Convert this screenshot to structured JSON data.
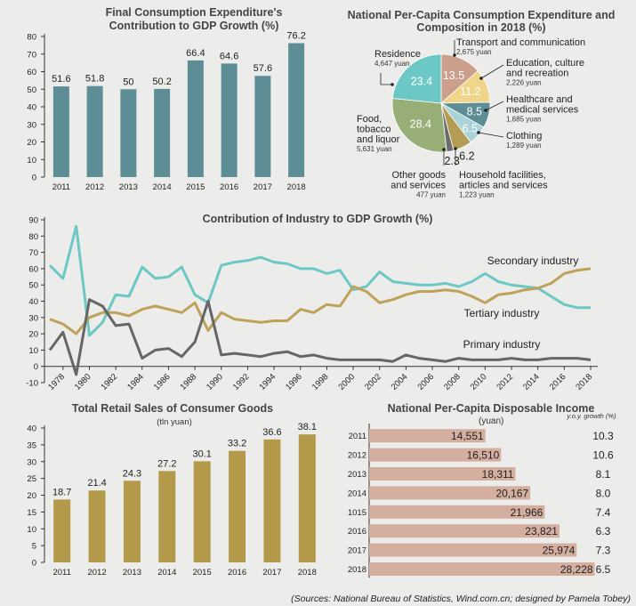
{
  "sources": {
    "prefix": "(Sources: ",
    "name1": "National Bureau of Statistics",
    "sep": ", ",
    "name2": "Wind.com.cn",
    "suffix": "; designed by Pamela Tobey)"
  },
  "colors": {
    "teal": "#5d8e96",
    "gold": "#b29a4a",
    "secondary": "#6cc8c4",
    "tertiary": "#bfa259",
    "primary": "#666666",
    "bar": "#d4ae9f"
  },
  "chart_data": [
    {
      "id": "fce",
      "type": "bar",
      "title": [
        "Final Consumption Expenditure's",
        "Contribution to GDP Growth (%)"
      ],
      "categories": [
        "2011",
        "2012",
        "2013",
        "2014",
        "2015",
        "2016",
        "2017",
        "2018"
      ],
      "values": [
        51.6,
        51.8,
        50,
        50.2,
        66.4,
        64.6,
        57.6,
        76.2
      ],
      "value_labels": [
        "51.6",
        "51.8",
        "50",
        "50.2",
        "66.4",
        "64.6",
        "57.6",
        "76.2"
      ],
      "ylim": [
        0,
        80
      ],
      "yticks": [
        0,
        10,
        20,
        30,
        40,
        50,
        60,
        70,
        80
      ]
    },
    {
      "id": "pie",
      "type": "pie",
      "title": [
        "National Per-Capita Consumption Expenditure and",
        "Composition in 2018 (%)"
      ],
      "slices": [
        {
          "pct": 13.5,
          "label": "13.5",
          "name": [
            "Transport and communication"
          ],
          "value": "2,675 yuan",
          "color": "#cc9e8c"
        },
        {
          "pct": 11.2,
          "label": "11.2",
          "name": [
            "Education, culture",
            "and recreation"
          ],
          "value": "2,226 yuan",
          "color": "#f1d58a"
        },
        {
          "pct": 8.5,
          "label": "8.5",
          "name": [
            "Healthcare and",
            "medical services"
          ],
          "value": "1,685 yuan",
          "color": "#5f8d95"
        },
        {
          "pct": 6.5,
          "label": "6.5",
          "name": [
            "Clothing"
          ],
          "value": "1,289 yuan",
          "color": "#a9d3d6"
        },
        {
          "pct": 6.2,
          "label": "6.2",
          "name": [
            "Household facilities,",
            "articles and services"
          ],
          "value": "1,223 yuan",
          "color": "#b59c55"
        },
        {
          "pct": 2.3,
          "label": "2.3",
          "name": [
            "Other goods",
            "and services"
          ],
          "value": "477 yuan",
          "color": "#6d6d6d"
        },
        {
          "pct": 28.4,
          "label": "28.4",
          "name": [
            "Food,",
            "tobacco",
            "and liquor"
          ],
          "value": "5,631 yuan",
          "color": "#97ae77"
        },
        {
          "pct": 23.4,
          "label": "23.4",
          "name": [
            "Residence"
          ],
          "value": "4,647 yuan",
          "color": "#6cc8c4"
        }
      ]
    },
    {
      "id": "industry",
      "type": "line",
      "title": "Contribution of Industry to GDP Growth (%)",
      "x": [
        1977,
        1978,
        1979,
        1980,
        1981,
        1982,
        1983,
        1984,
        1985,
        1986,
        1987,
        1988,
        1989,
        1990,
        1991,
        1992,
        1993,
        1994,
        1995,
        1996,
        1997,
        1998,
        1999,
        2000,
        2001,
        2002,
        2003,
        2004,
        2005,
        2006,
        2007,
        2008,
        2009,
        2010,
        2011,
        2012,
        2013,
        2014,
        2015,
        2016,
        2017,
        2018
      ],
      "xticks": [
        1978,
        1980,
        1982,
        1984,
        1986,
        1988,
        1990,
        1992,
        1994,
        1996,
        1998,
        2000,
        2002,
        2004,
        2006,
        2008,
        2010,
        2012,
        2014,
        2016,
        2018
      ],
      "ylim": [
        -10,
        90
      ],
      "yticks": [
        -10,
        0,
        10,
        20,
        30,
        40,
        50,
        60,
        70,
        80,
        90
      ],
      "series": [
        {
          "name": "Secondary industry",
          "color": "#6cc8c4",
          "values": [
            62,
            54,
            86,
            19,
            27,
            44,
            43,
            61,
            54,
            55,
            61,
            44,
            39,
            62,
            64,
            65,
            67,
            64,
            63,
            60,
            60,
            57,
            59,
            47,
            49,
            58,
            52,
            51,
            50,
            50,
            51,
            49,
            52,
            57,
            52,
            50,
            49,
            48,
            43,
            38,
            36,
            36
          ]
        },
        {
          "name": "Tertiary industry",
          "color": "#bfa259",
          "values": [
            29,
            26,
            20,
            30,
            33,
            33,
            31,
            35,
            37,
            35,
            33,
            39,
            22,
            33,
            29,
            28,
            27,
            28,
            28,
            35,
            33,
            38,
            37,
            49,
            46,
            39,
            41,
            44,
            46,
            46,
            47,
            46,
            43,
            39,
            44,
            45,
            47,
            48,
            51,
            57,
            59,
            60
          ]
        },
        {
          "name": "Primary industry",
          "color": "#666666",
          "values": [
            10,
            21,
            -5,
            41,
            37,
            25,
            26,
            5,
            10,
            11,
            6,
            15,
            40,
            7,
            8,
            7,
            6,
            8,
            9,
            6,
            7,
            5,
            4,
            4,
            4,
            4,
            3,
            7,
            5,
            4,
            3,
            5,
            4,
            4,
            4,
            5,
            4,
            4,
            5,
            5,
            5,
            4
          ]
        }
      ]
    },
    {
      "id": "retail",
      "type": "bar",
      "title": "Total Retail Sales of Consumer Goods",
      "subtitle": "(tln yuan)",
      "categories": [
        "2011",
        "2012",
        "2013",
        "2014",
        "2015",
        "2016",
        "2017",
        "2018"
      ],
      "values": [
        18.7,
        21.4,
        24.3,
        27.2,
        30.1,
        33.2,
        36.6,
        38.1
      ],
      "value_labels": [
        "18.7",
        "21.4",
        "24.3",
        "27.2",
        "30.1",
        "33.2",
        "36.6",
        "38.1"
      ],
      "ylim": [
        0,
        40
      ],
      "yticks": [
        0,
        5,
        10,
        15,
        20,
        25,
        30,
        35,
        40
      ]
    },
    {
      "id": "income",
      "type": "bar",
      "title": "National Per-Capita Disposable Income",
      "unit": "(yuan)",
      "growth_header": "y.o.y. growth (%)",
      "categories": [
        "2011",
        "2012",
        "2013",
        "2014",
        "1015",
        "2016",
        "2017",
        "2018"
      ],
      "values": [
        14551,
        16510,
        18311,
        20167,
        21966,
        23821,
        25974,
        28228
      ],
      "value_labels": [
        "14,551",
        "16,510",
        "18,311",
        "20,167",
        "21,966",
        "23,821",
        "25,974",
        "28,228"
      ],
      "growth": [
        "10.3",
        "10.6",
        "8.1",
        "8.0",
        "7.4",
        "6.3",
        "7.3",
        "6.5"
      ],
      "xlim": [
        0,
        29500
      ]
    }
  ]
}
